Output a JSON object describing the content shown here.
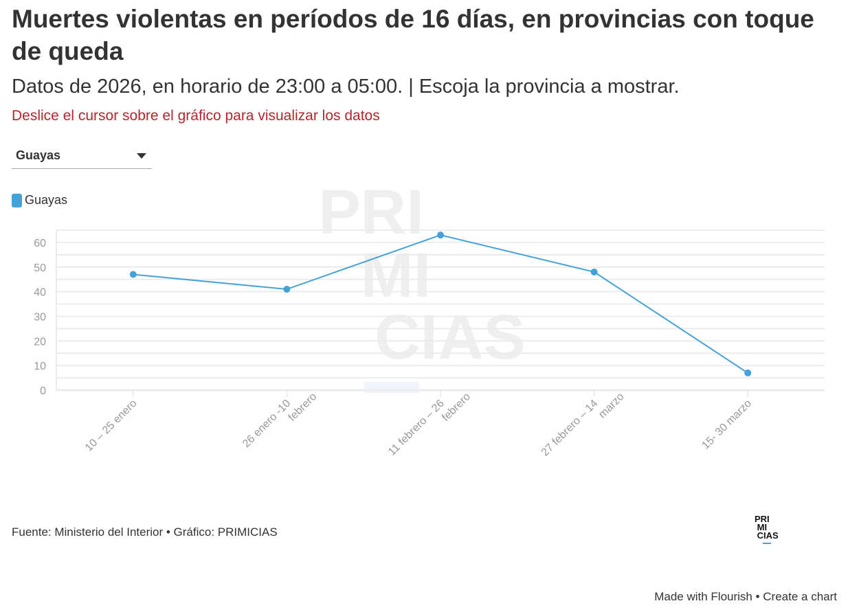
{
  "title": "Muertes violentas en períodos de 16 días, en provincias con toque de queda",
  "subtitle": "Datos de 2026, en horario de 23:00 a 05:00. | Escoja la provincia a mostrar.",
  "note": "Deslice el cursor sobre el gráfico para visualizar los datos",
  "dropdown": {
    "selected": "Guayas"
  },
  "watermark": "PRIMICIAS",
  "footer": {
    "source": "Fuente: Ministerio del Interior • Gráfico: PRIMICIAS",
    "logo": "PRIMICIAS",
    "made_with": "Made with Flourish • Create a chart"
  },
  "chart_data": {
    "type": "line",
    "categories": [
      "10 – 25 enero",
      "26 enero -10 febrero",
      "11 febrero – 26 febrero",
      "27 febrero – 14 marzo",
      "15- 30 marzo"
    ],
    "series": [
      {
        "name": "Guayas",
        "values": [
          47,
          41,
          63,
          48,
          7
        ],
        "color": "#45a2d9"
      }
    ],
    "yticks": [
      0,
      10,
      20,
      30,
      40,
      50,
      60
    ],
    "ylim": [
      0,
      65
    ],
    "grid": true,
    "legend": "top-left"
  }
}
